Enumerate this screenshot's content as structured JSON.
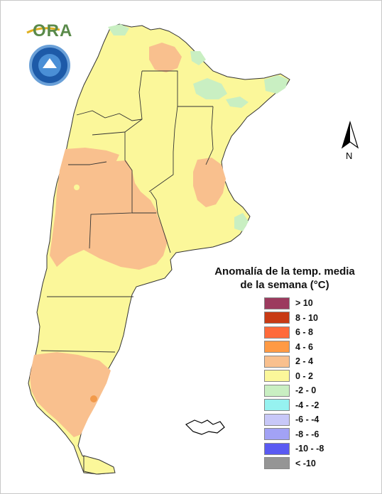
{
  "header": {
    "logo_text": "ORA"
  },
  "map": {
    "title_line1": "Anomalía de la temp. media",
    "title_line2": "de la semana (°C)",
    "north_label": "N",
    "legend": [
      {
        "label": "> 10",
        "color": "#9c3a5e"
      },
      {
        "label": "8 - 10",
        "color": "#c83a14"
      },
      {
        "label": "6 - 8",
        "color": "#ff6a3a"
      },
      {
        "label": "4 - 6",
        "color": "#ff9a44"
      },
      {
        "label": "2 - 4",
        "color": "#f9c08e"
      },
      {
        "label": "0 - 2",
        "color": "#fbf79a"
      },
      {
        "label": "-2 - 0",
        "color": "#c9efc2"
      },
      {
        "label": "-4 - -2",
        "color": "#96f2f0"
      },
      {
        "label": "-6 - -4",
        "color": "#c8c8f8"
      },
      {
        "label": "-8 - -6",
        "color": "#a2a2f5"
      },
      {
        "label": "-10 - -8",
        "color": "#5a5af2"
      },
      {
        "label": "< -10",
        "color": "#959595"
      }
    ]
  }
}
